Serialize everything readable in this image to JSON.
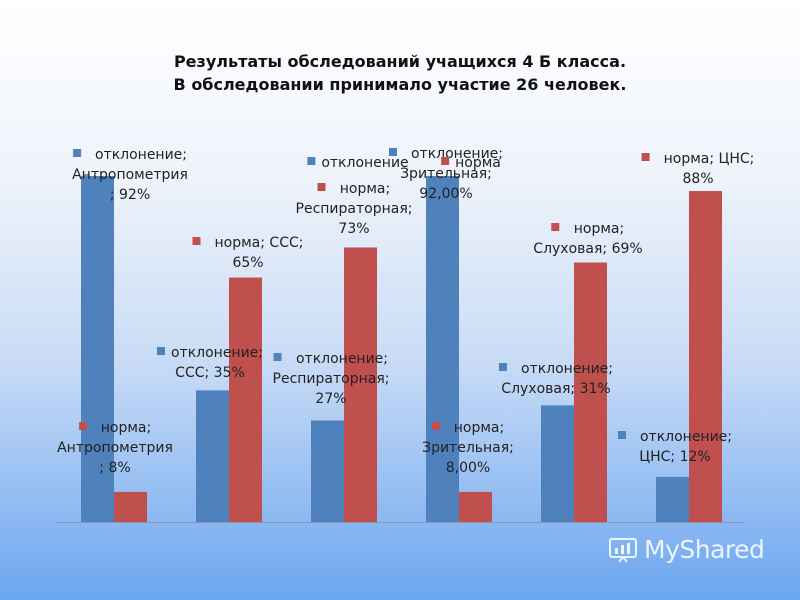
{
  "chart_data": {
    "type": "bar",
    "title_lines": [
      "Результаты обследований учащихся 4 Б класса.",
      "В обследовании принимало участие 26 человек."
    ],
    "ylim": [
      0,
      100
    ],
    "grid": false,
    "colors": {
      "отклонение": "#4f81bd",
      "норма": "#c0504d"
    },
    "groups": [
      {
        "category": "Антропометрия",
        "bars": [
          {
            "series": "отклонение",
            "value": 92,
            "label_lines": [
              "отклонение;",
              "Антропометрия",
              "; 92%"
            ]
          },
          {
            "series": "норма",
            "value": 8,
            "label_lines": [
              "норма;",
              "Антропометрия",
              "; 8%"
            ]
          }
        ]
      },
      {
        "category": "ССС",
        "bars": [
          {
            "series": "отклонение",
            "value": 35,
            "label_lines": [
              "отклонение;",
              "ССС; 35%"
            ]
          },
          {
            "series": "норма",
            "value": 65,
            "label_lines": [
              "норма; ССС;",
              "65%"
            ]
          }
        ]
      },
      {
        "category": "Респираторная",
        "bars": [
          {
            "series": "отклонение",
            "value": 27,
            "label_lines": [
              "отклонение;",
              "Респираторная;",
              "27%"
            ]
          },
          {
            "series": "норма",
            "value": 73,
            "label_lines": [
              "норма;",
              "Респираторная;",
              "73%"
            ]
          }
        ]
      },
      {
        "category": "Зрительная",
        "bars": [
          {
            "series": "отклонение",
            "value": 92,
            "label_lines": [
              "отклонение;",
              "Зрительная;",
              "92,00%"
            ]
          },
          {
            "series": "норма",
            "value": 8,
            "label_lines": [
              "норма;",
              "Зрительная;",
              "8,00%"
            ]
          }
        ]
      },
      {
        "category": "Слуховая",
        "bars": [
          {
            "series": "отклонение",
            "value": 31,
            "label_lines": [
              "отклонение;",
              "Слуховая; 31%"
            ]
          },
          {
            "series": "норма",
            "value": 69,
            "label_lines": [
              "норма;",
              "Слуховая; 69%"
            ]
          }
        ]
      },
      {
        "category": "ЦНС",
        "bars": [
          {
            "series": "отклонение",
            "value": 12,
            "label_lines": [
              "отклонение;",
              "ЦНС; 12%"
            ]
          },
          {
            "series": "норма",
            "value": 88,
            "label_lines": [
              "норма; ЦНС;",
              "88%"
            ]
          }
        ]
      }
    ],
    "overlay_labels": [
      {
        "text": "отклонение",
        "series": "отклонение"
      },
      {
        "text": "норма",
        "series": "норма"
      }
    ]
  },
  "watermark": {
    "text": "MyShared"
  }
}
